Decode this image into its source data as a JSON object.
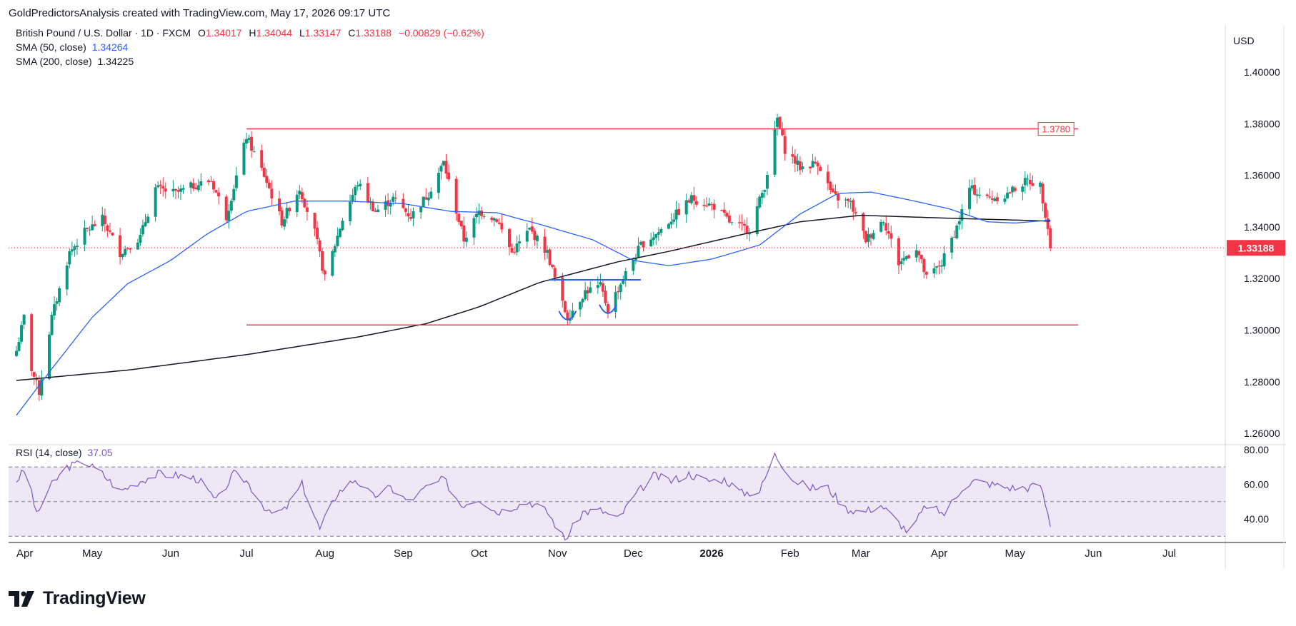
{
  "header": {
    "caption": "GoldPredictorsAnalysis created with TradingView.com, May 17, 2026 09:17 UTC"
  },
  "legend": {
    "symbol": "British Pound / U.S. Dollar · 1D · FXCM",
    "open_label": "O",
    "open": "1.34017",
    "high_label": "H",
    "high": "1.34044",
    "low_label": "L",
    "low": "1.33147",
    "close_label": "C",
    "close": "1.33188",
    "change": "−0.00829 (−0.62%)",
    "sma50_label": "SMA (50, close)",
    "sma50_value": "1.34264",
    "sma200_label": "SMA (200, close)",
    "sma200_value": "1.34225",
    "rsi_label": "RSI (14, close)",
    "rsi_value": "37.05"
  },
  "currency": "USD",
  "last_price_label": "1.33188",
  "resistance_label": "1.3780",
  "footer": {
    "brand": "TradingView"
  },
  "colors": {
    "up": "#089981",
    "down": "#f23645",
    "sma50": "#2962ff",
    "sma200": "#131722",
    "level_line": "#f23645",
    "neckline": "#2962ff",
    "rsi_line": "#7e57c2",
    "rsi_band": "#ede7f6"
  },
  "chart_data": {
    "type": "candlestick",
    "instrument": "British Pound / U.S. Dollar",
    "timeframe": "1D",
    "y_axis_ticks": [
      "1.40000",
      "1.38000",
      "1.36000",
      "1.34000",
      "1.32000",
      "1.30000",
      "1.28000",
      "1.26000"
    ],
    "x_axis_ticks": [
      "Apr",
      "May",
      "Jun",
      "Jul",
      "Aug",
      "Sep",
      "Oct",
      "Nov",
      "Dec",
      "2026",
      "Feb",
      "Mar",
      "Apr",
      "May",
      "Jun",
      "Jul"
    ],
    "ylim": [
      1.26,
      1.4
    ],
    "last_close": 1.33188,
    "horizontal_levels": [
      {
        "price": 1.378,
        "from": "2025-07-01",
        "to": "2026-05-26",
        "label": "1.3780"
      },
      {
        "price": 1.302,
        "from": "2025-07-01",
        "to": "2026-05-26"
      },
      {
        "price": 1.3195,
        "from": "2025-10-29",
        "to": "2025-12-04",
        "pattern": "neckline"
      }
    ],
    "pattern_marks": [
      {
        "type": "bottom-arc",
        "date": "2025-11-05",
        "price": 1.3035
      },
      {
        "type": "bottom-arc",
        "date": "2025-11-21",
        "price": 1.306
      }
    ],
    "rsi": {
      "period": 14,
      "last": 37.05,
      "ticks": [
        "80.00",
        "60.00",
        "40.00"
      ],
      "levels": [
        70,
        50,
        30
      ],
      "ylim": [
        24,
        80
      ],
      "anchors": [
        {
          "date": "2025-04-01",
          "value": 62
        },
        {
          "date": "2025-04-05",
          "value": 70
        },
        {
          "date": "2025-04-09",
          "value": 42
        },
        {
          "date": "2025-04-14",
          "value": 58
        },
        {
          "date": "2025-04-21",
          "value": 70
        },
        {
          "date": "2025-04-28",
          "value": 73
        },
        {
          "date": "2025-05-05",
          "value": 66
        },
        {
          "date": "2025-05-12",
          "value": 56
        },
        {
          "date": "2025-05-20",
          "value": 62
        },
        {
          "date": "2025-05-27",
          "value": 66
        },
        {
          "date": "2025-06-05",
          "value": 65
        },
        {
          "date": "2025-06-12",
          "value": 63
        },
        {
          "date": "2025-06-19",
          "value": 50
        },
        {
          "date": "2025-06-26",
          "value": 66
        },
        {
          "date": "2025-07-01",
          "value": 62
        },
        {
          "date": "2025-07-10",
          "value": 43
        },
        {
          "date": "2025-07-16",
          "value": 45
        },
        {
          "date": "2025-07-23",
          "value": 60
        },
        {
          "date": "2025-07-30",
          "value": 34
        },
        {
          "date": "2025-08-06",
          "value": 55
        },
        {
          "date": "2025-08-13",
          "value": 63
        },
        {
          "date": "2025-08-20",
          "value": 53
        },
        {
          "date": "2025-08-27",
          "value": 58
        },
        {
          "date": "2025-09-03",
          "value": 50
        },
        {
          "date": "2025-09-10",
          "value": 58
        },
        {
          "date": "2025-09-17",
          "value": 63
        },
        {
          "date": "2025-09-24",
          "value": 48
        },
        {
          "date": "2025-10-01",
          "value": 52
        },
        {
          "date": "2025-10-08",
          "value": 44
        },
        {
          "date": "2025-10-14",
          "value": 47
        },
        {
          "date": "2025-10-21",
          "value": 50
        },
        {
          "date": "2025-10-28",
          "value": 44
        },
        {
          "date": "2025-11-04",
          "value": 28
        },
        {
          "date": "2025-11-11",
          "value": 44
        },
        {
          "date": "2025-11-18",
          "value": 45
        },
        {
          "date": "2025-11-25",
          "value": 40
        },
        {
          "date": "2025-12-02",
          "value": 54
        },
        {
          "date": "2025-12-09",
          "value": 65
        },
        {
          "date": "2025-12-16",
          "value": 62
        },
        {
          "date": "2025-12-23",
          "value": 66
        },
        {
          "date": "2025-12-30",
          "value": 62
        },
        {
          "date": "2026-01-06",
          "value": 63
        },
        {
          "date": "2026-01-13",
          "value": 55
        },
        {
          "date": "2026-01-20",
          "value": 56
        },
        {
          "date": "2026-01-26",
          "value": 77
        },
        {
          "date": "2026-02-03",
          "value": 62
        },
        {
          "date": "2026-02-09",
          "value": 58
        },
        {
          "date": "2026-02-16",
          "value": 58
        },
        {
          "date": "2026-02-23",
          "value": 46
        },
        {
          "date": "2026-03-02",
          "value": 44
        },
        {
          "date": "2026-03-09",
          "value": 48
        },
        {
          "date": "2026-03-16",
          "value": 38
        },
        {
          "date": "2026-03-20",
          "value": 32
        },
        {
          "date": "2026-03-27",
          "value": 48
        },
        {
          "date": "2026-04-03",
          "value": 43
        },
        {
          "date": "2026-04-10",
          "value": 58
        },
        {
          "date": "2026-04-15",
          "value": 62
        },
        {
          "date": "2026-04-22",
          "value": 60
        },
        {
          "date": "2026-04-29",
          "value": 58
        },
        {
          "date": "2026-05-06",
          "value": 58
        },
        {
          "date": "2026-05-11",
          "value": 60
        },
        {
          "date": "2026-05-15",
          "value": 37.05
        }
      ]
    },
    "close_anchors": [
      {
        "date": "2025-04-01",
        "close": 1.292
      },
      {
        "date": "2025-04-04",
        "close": 1.305
      },
      {
        "date": "2025-04-07",
        "close": 1.285
      },
      {
        "date": "2025-04-10",
        "close": 1.276
      },
      {
        "date": "2025-04-15",
        "close": 1.305
      },
      {
        "date": "2025-04-22",
        "close": 1.33
      },
      {
        "date": "2025-04-28",
        "close": 1.338
      },
      {
        "date": "2025-05-05",
        "close": 1.343
      },
      {
        "date": "2025-05-12",
        "close": 1.33
      },
      {
        "date": "2025-05-20",
        "close": 1.336
      },
      {
        "date": "2025-05-26",
        "close": 1.355
      },
      {
        "date": "2025-06-03",
        "close": 1.353
      },
      {
        "date": "2025-06-10",
        "close": 1.356
      },
      {
        "date": "2025-06-17",
        "close": 1.358
      },
      {
        "date": "2025-06-23",
        "close": 1.344
      },
      {
        "date": "2025-07-01",
        "close": 1.375
      },
      {
        "date": "2025-07-08",
        "close": 1.36
      },
      {
        "date": "2025-07-15",
        "close": 1.342
      },
      {
        "date": "2025-07-22",
        "close": 1.355
      },
      {
        "date": "2025-07-28",
        "close": 1.338
      },
      {
        "date": "2025-08-01",
        "close": 1.32
      },
      {
        "date": "2025-08-08",
        "close": 1.343
      },
      {
        "date": "2025-08-14",
        "close": 1.357
      },
      {
        "date": "2025-08-21",
        "close": 1.346
      },
      {
        "date": "2025-08-28",
        "close": 1.351
      },
      {
        "date": "2025-09-04",
        "close": 1.344
      },
      {
        "date": "2025-09-11",
        "close": 1.353
      },
      {
        "date": "2025-09-17",
        "close": 1.365
      },
      {
        "date": "2025-09-25",
        "close": 1.335
      },
      {
        "date": "2025-10-01",
        "close": 1.346
      },
      {
        "date": "2025-10-08",
        "close": 1.343
      },
      {
        "date": "2025-10-14",
        "close": 1.33
      },
      {
        "date": "2025-10-21",
        "close": 1.339
      },
      {
        "date": "2025-10-28",
        "close": 1.33
      },
      {
        "date": "2025-11-03",
        "close": 1.31
      },
      {
        "date": "2025-11-05",
        "close": 1.305
      },
      {
        "date": "2025-11-12",
        "close": 1.315
      },
      {
        "date": "2025-11-18",
        "close": 1.317
      },
      {
        "date": "2025-11-21",
        "close": 1.308
      },
      {
        "date": "2025-11-27",
        "close": 1.32
      },
      {
        "date": "2025-12-04",
        "close": 1.333
      },
      {
        "date": "2025-12-11",
        "close": 1.338
      },
      {
        "date": "2025-12-18",
        "close": 1.345
      },
      {
        "date": "2025-12-24",
        "close": 1.351
      },
      {
        "date": "2026-01-02",
        "close": 1.348
      },
      {
        "date": "2026-01-09",
        "close": 1.341
      },
      {
        "date": "2026-01-16",
        "close": 1.339
      },
      {
        "date": "2026-01-22",
        "close": 1.356
      },
      {
        "date": "2026-01-27",
        "close": 1.382
      },
      {
        "date": "2026-01-30",
        "close": 1.37
      },
      {
        "date": "2026-02-05",
        "close": 1.363
      },
      {
        "date": "2026-02-12",
        "close": 1.365
      },
      {
        "date": "2026-02-18",
        "close": 1.352
      },
      {
        "date": "2026-02-25",
        "close": 1.349
      },
      {
        "date": "2026-03-03",
        "close": 1.335
      },
      {
        "date": "2026-03-10",
        "close": 1.343
      },
      {
        "date": "2026-03-16",
        "close": 1.326
      },
      {
        "date": "2026-03-23",
        "close": 1.332
      },
      {
        "date": "2026-03-27",
        "close": 1.32
      },
      {
        "date": "2026-04-02",
        "close": 1.326
      },
      {
        "date": "2026-04-08",
        "close": 1.34
      },
      {
        "date": "2026-04-13",
        "close": 1.355
      },
      {
        "date": "2026-04-20",
        "close": 1.351
      },
      {
        "date": "2026-04-27",
        "close": 1.352
      },
      {
        "date": "2026-05-01",
        "close": 1.355
      },
      {
        "date": "2026-05-06",
        "close": 1.358
      },
      {
        "date": "2026-05-11",
        "close": 1.356
      },
      {
        "date": "2026-05-14",
        "close": 1.34
      },
      {
        "date": "2026-05-15",
        "close": 1.33188
      }
    ],
    "sma50_anchors": [
      {
        "date": "2025-04-01",
        "value": 1.267
      },
      {
        "date": "2025-04-15",
        "value": 1.285
      },
      {
        "date": "2025-05-01",
        "value": 1.305
      },
      {
        "date": "2025-05-15",
        "value": 1.318
      },
      {
        "date": "2025-06-01",
        "value": 1.327
      },
      {
        "date": "2025-06-15",
        "value": 1.337
      },
      {
        "date": "2025-07-01",
        "value": 1.346
      },
      {
        "date": "2025-07-20",
        "value": 1.35
      },
      {
        "date": "2025-08-10",
        "value": 1.35
      },
      {
        "date": "2025-09-01",
        "value": 1.349
      },
      {
        "date": "2025-09-20",
        "value": 1.346
      },
      {
        "date": "2025-10-08",
        "value": 1.3455
      },
      {
        "date": "2025-10-25",
        "value": 1.341
      },
      {
        "date": "2025-11-15",
        "value": 1.335
      },
      {
        "date": "2025-12-01",
        "value": 1.327
      },
      {
        "date": "2025-12-15",
        "value": 1.325
      },
      {
        "date": "2026-01-01",
        "value": 1.3275
      },
      {
        "date": "2026-01-20",
        "value": 1.333
      },
      {
        "date": "2026-02-05",
        "value": 1.345
      },
      {
        "date": "2026-02-20",
        "value": 1.353
      },
      {
        "date": "2026-03-05",
        "value": 1.3535
      },
      {
        "date": "2026-03-20",
        "value": 1.3505
      },
      {
        "date": "2026-04-05",
        "value": 1.347
      },
      {
        "date": "2026-04-20",
        "value": 1.342
      },
      {
        "date": "2026-05-01",
        "value": 1.3415
      },
      {
        "date": "2026-05-15",
        "value": 1.34264
      }
    ],
    "sma200_anchors": [
      {
        "date": "2025-04-01",
        "value": 1.2805
      },
      {
        "date": "2025-05-15",
        "value": 1.2845
      },
      {
        "date": "2025-07-01",
        "value": 1.2905
      },
      {
        "date": "2025-08-15",
        "value": 1.2975
      },
      {
        "date": "2025-09-10",
        "value": 1.3025
      },
      {
        "date": "2025-10-01",
        "value": 1.309
      },
      {
        "date": "2025-10-25",
        "value": 1.3185
      },
      {
        "date": "2025-11-25",
        "value": 1.3265
      },
      {
        "date": "2025-12-15",
        "value": 1.3305
      },
      {
        "date": "2026-01-15",
        "value": 1.3375
      },
      {
        "date": "2026-02-05",
        "value": 1.342
      },
      {
        "date": "2026-03-01",
        "value": 1.3445
      },
      {
        "date": "2026-04-01",
        "value": 1.3435
      },
      {
        "date": "2026-05-15",
        "value": 1.34225
      }
    ]
  }
}
